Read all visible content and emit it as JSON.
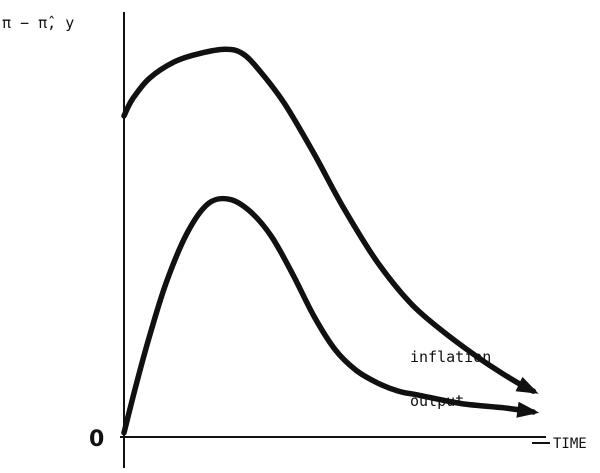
{
  "chart_data": {
    "type": "line",
    "title": "",
    "ylabel": "π − π̂, y",
    "xlabel": "TIME",
    "origin_label": "0",
    "ylim": [
      0,
      100
    ],
    "xlim": [
      0,
      100
    ],
    "grid": false,
    "colors": {
      "ink": "#111111",
      "background": "#ffffff"
    },
    "series": [
      {
        "name": "inflation",
        "x": [
          0,
          2,
          6,
          12,
          18,
          24,
          28,
          32,
          38,
          45,
          52,
          60,
          68,
          76,
          84,
          90,
          95,
          97
        ],
        "y": [
          77,
          81,
          86,
          90,
          92,
          93,
          92,
          88,
          80,
          68,
          55,
          42,
          32,
          25,
          19,
          15,
          12,
          11
        ]
      },
      {
        "name": "output",
        "x": [
          0,
          3,
          6,
          10,
          15,
          20,
          25,
          30,
          35,
          40,
          45,
          50,
          55,
          60,
          65,
          70,
          80,
          90,
          97
        ],
        "y": [
          1,
          13,
          24,
          37,
          49,
          56,
          57,
          54,
          48,
          39,
          29,
          21,
          16,
          13,
          11,
          10,
          8,
          7,
          6
        ]
      }
    ]
  }
}
